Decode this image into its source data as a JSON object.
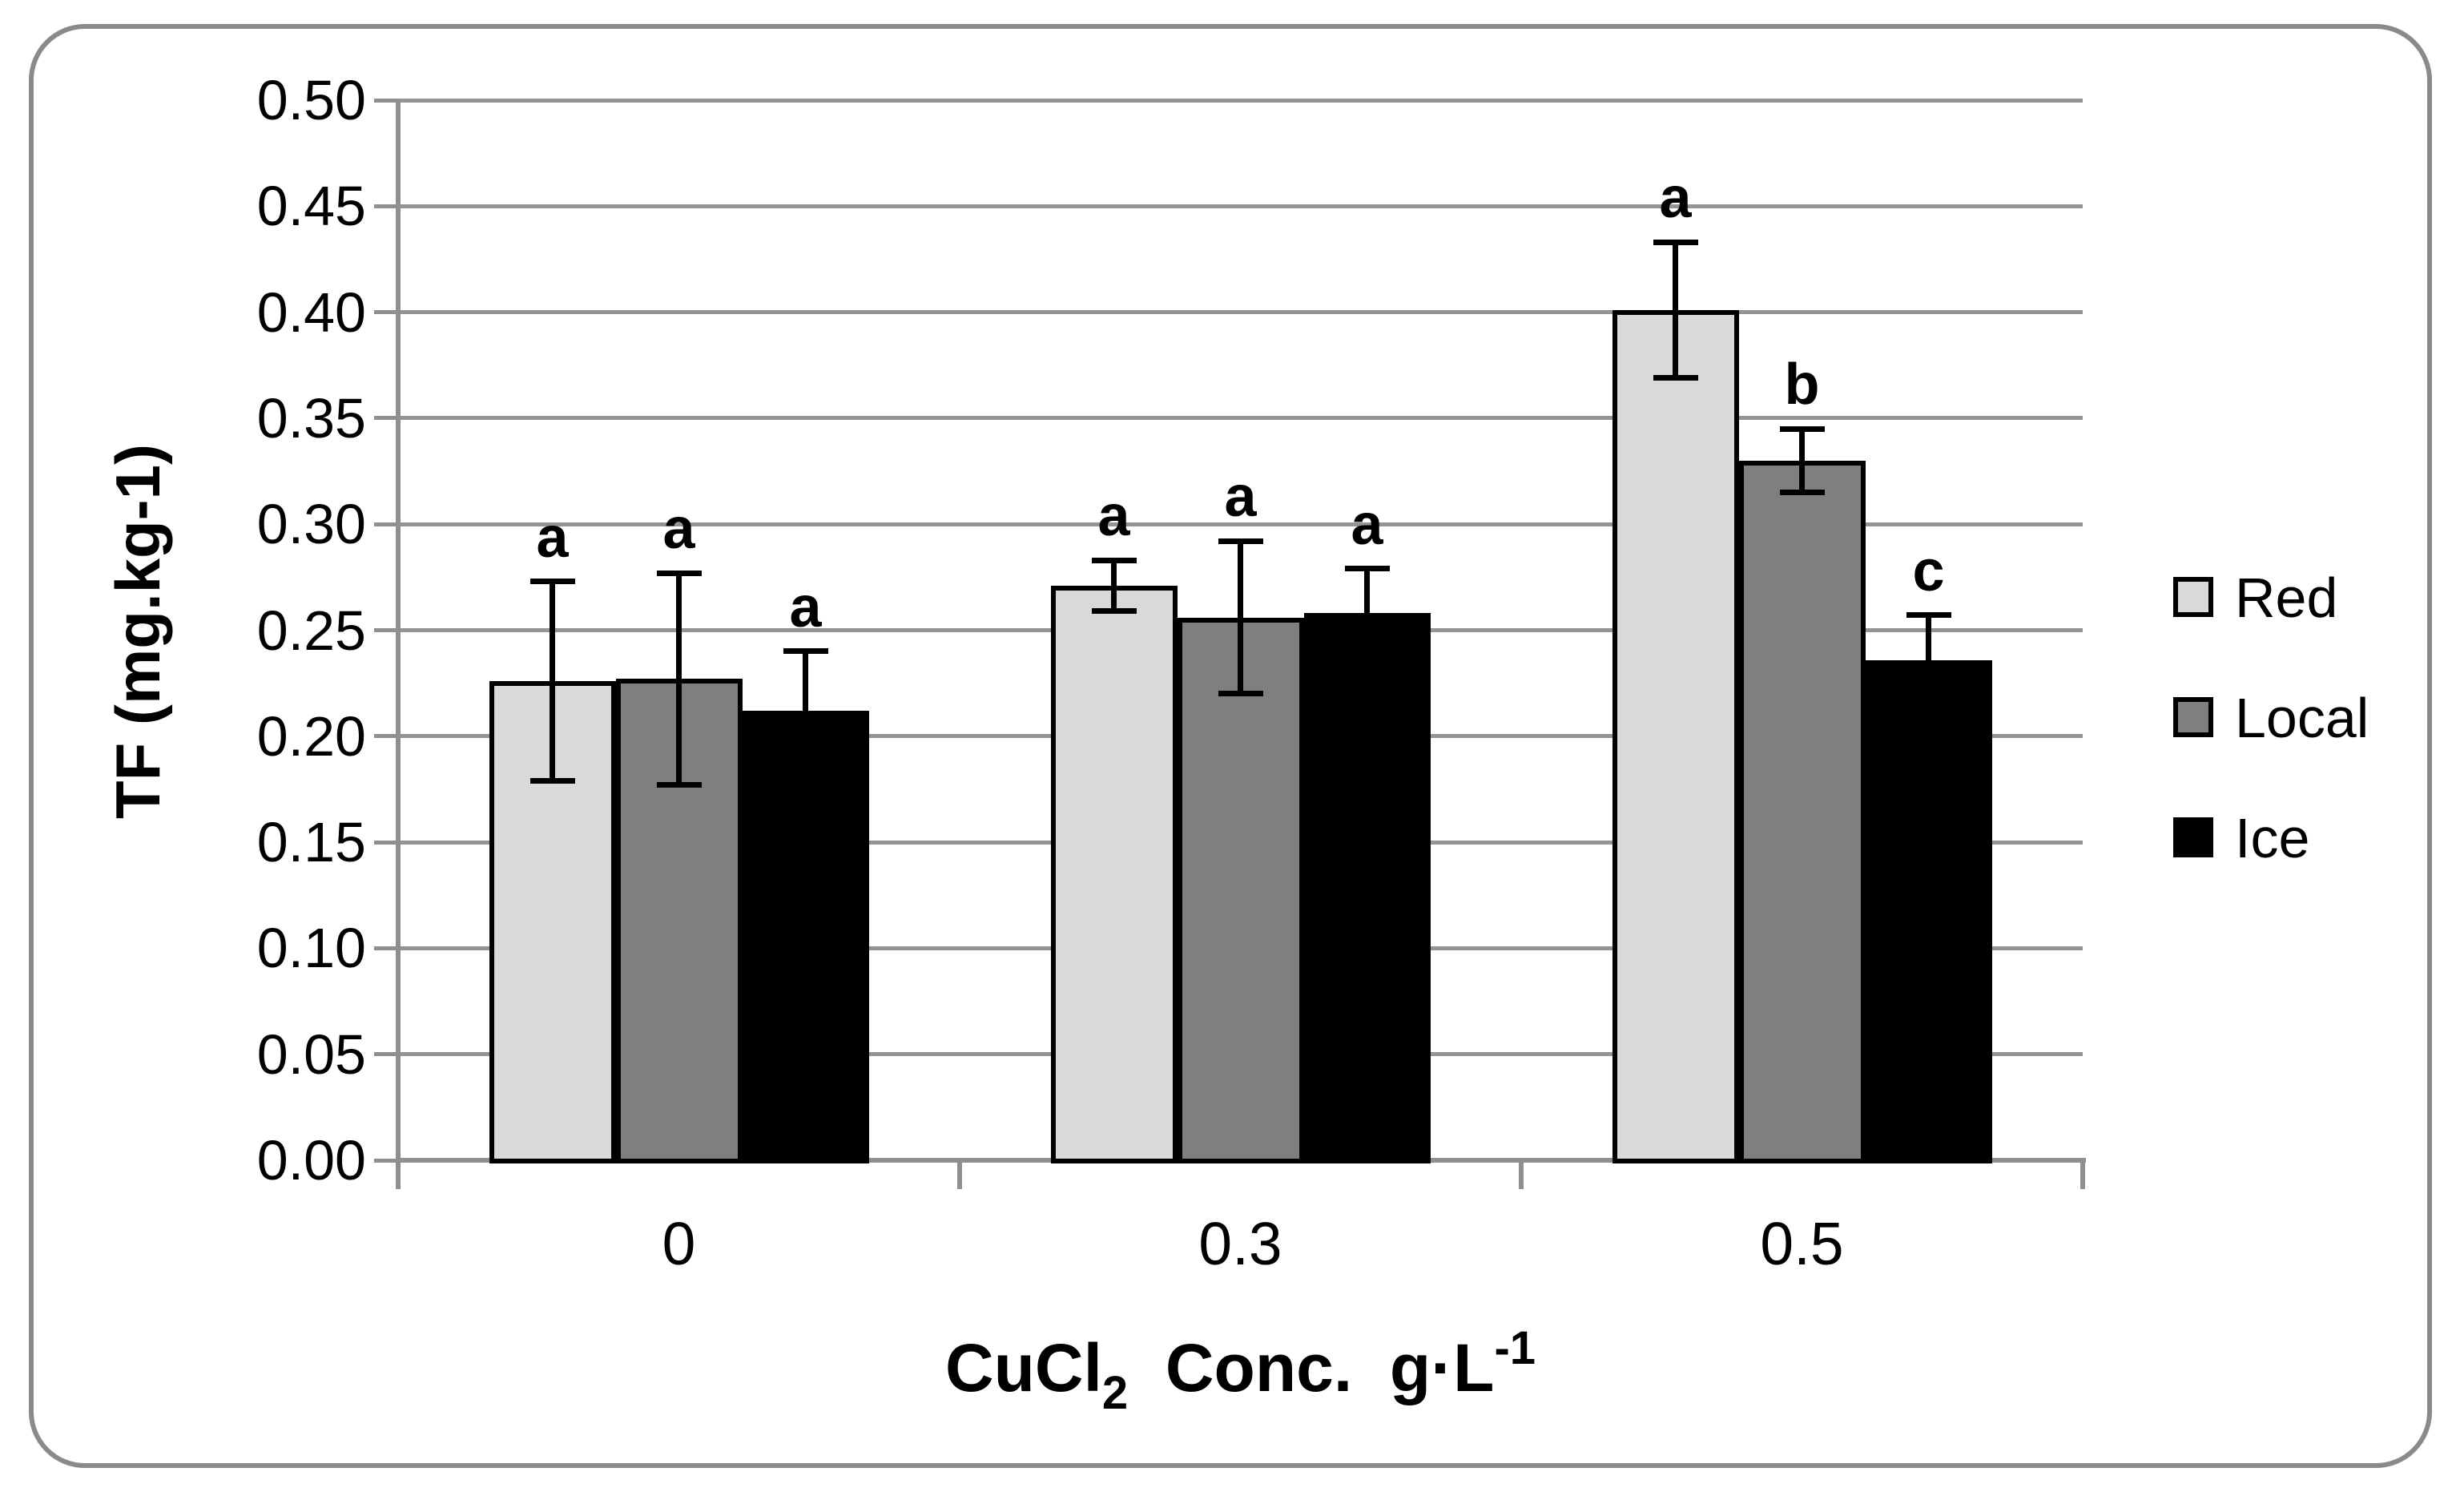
{
  "figure": {
    "background": "#ffffff",
    "border_color": "#8a8a8a"
  },
  "chart_data": {
    "type": "bar",
    "title": "",
    "categories": [
      "0",
      "0.3",
      "0.5"
    ],
    "series": [
      {
        "name": "Red",
        "color": "#d9d9d9",
        "values": [
          0.226,
          0.271,
          0.401
        ],
        "errors": [
          0.047,
          0.012,
          0.032
        ],
        "sig_letters": [
          "a",
          "a",
          "a"
        ]
      },
      {
        "name": "Local",
        "color": "#7f7f7f",
        "values": [
          0.227,
          0.256,
          0.33
        ],
        "errors": [
          0.05,
          0.036,
          0.015
        ],
        "sig_letters": [
          "a",
          "a",
          "b"
        ]
      },
      {
        "name": "Ice",
        "color": "#000000",
        "values": [
          0.212,
          0.258,
          0.236
        ],
        "errors": [
          0.028,
          0.021,
          0.021
        ],
        "sig_letters": [
          "a",
          "a",
          "c"
        ]
      }
    ],
    "xlabel": {
      "pre": "CuCl",
      "sub": "2",
      "mid": "  Conc.  g·L",
      "sup": "-1"
    },
    "ylabel": "TF (mg.kg-1)",
    "ylim": [
      0,
      0.5
    ],
    "ytick_step": 0.05,
    "yticks": [
      "0.00",
      "0.05",
      "0.10",
      "0.15",
      "0.20",
      "0.25",
      "0.30",
      "0.35",
      "0.40",
      "0.45",
      "0.50"
    ],
    "grid": true,
    "legend_position": "right",
    "axis_color": "#8f8f8f",
    "gridline_color": "#949494",
    "error_bar_color": "#000000"
  }
}
